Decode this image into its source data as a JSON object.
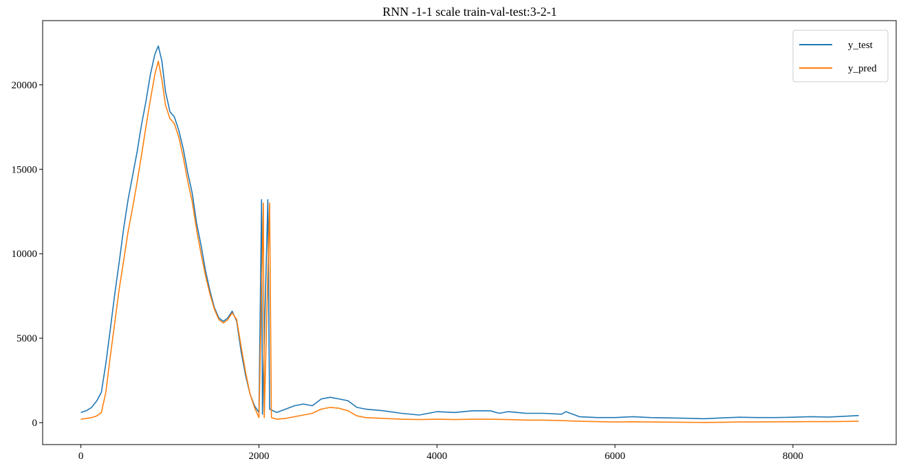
{
  "chart_data": {
    "type": "line",
    "title": "RNN -1-1 scale train-val-test:3-2-1",
    "xlabel": "",
    "ylabel": "",
    "xlim": [
      -430,
      9160
    ],
    "ylim": [
      -1300,
      23800
    ],
    "xticks": [
      0,
      2000,
      4000,
      6000,
      8000
    ],
    "yticks": [
      0,
      5000,
      10000,
      15000,
      20000
    ],
    "grid": false,
    "legend_position": "top-right",
    "series": [
      {
        "name": "y_test",
        "color": "#1f77b4",
        "points": [
          [
            0,
            600
          ],
          [
            60,
            700
          ],
          [
            120,
            900
          ],
          [
            180,
            1300
          ],
          [
            230,
            1800
          ],
          [
            280,
            3500
          ],
          [
            330,
            5500
          ],
          [
            380,
            7600
          ],
          [
            430,
            9500
          ],
          [
            480,
            11500
          ],
          [
            530,
            13200
          ],
          [
            580,
            14600
          ],
          [
            630,
            16000
          ],
          [
            680,
            17600
          ],
          [
            730,
            19000
          ],
          [
            780,
            20600
          ],
          [
            830,
            21800
          ],
          [
            870,
            22300
          ],
          [
            910,
            21400
          ],
          [
            950,
            19600
          ],
          [
            1000,
            18400
          ],
          [
            1050,
            18100
          ],
          [
            1100,
            17300
          ],
          [
            1150,
            16200
          ],
          [
            1200,
            14800
          ],
          [
            1250,
            13600
          ],
          [
            1300,
            11800
          ],
          [
            1350,
            10500
          ],
          [
            1400,
            9000
          ],
          [
            1450,
            7800
          ],
          [
            1500,
            6800
          ],
          [
            1550,
            6200
          ],
          [
            1600,
            6000
          ],
          [
            1650,
            6200
          ],
          [
            1700,
            6600
          ],
          [
            1750,
            6000
          ],
          [
            1800,
            4200
          ],
          [
            1850,
            2800
          ],
          [
            1900,
            1700
          ],
          [
            1950,
            1000
          ],
          [
            2000,
            600
          ],
          [
            2030,
            13200
          ],
          [
            2040,
            500
          ],
          [
            2100,
            13200
          ],
          [
            2120,
            800
          ],
          [
            2200,
            600
          ],
          [
            2300,
            800
          ],
          [
            2400,
            1000
          ],
          [
            2500,
            1100
          ],
          [
            2600,
            1000
          ],
          [
            2700,
            1400
          ],
          [
            2800,
            1500
          ],
          [
            2900,
            1400
          ],
          [
            3000,
            1300
          ],
          [
            3100,
            900
          ],
          [
            3200,
            800
          ],
          [
            3400,
            700
          ],
          [
            3600,
            550
          ],
          [
            3800,
            450
          ],
          [
            4000,
            650
          ],
          [
            4200,
            600
          ],
          [
            4400,
            700
          ],
          [
            4600,
            700
          ],
          [
            4700,
            550
          ],
          [
            4800,
            650
          ],
          [
            5000,
            550
          ],
          [
            5200,
            550
          ],
          [
            5400,
            500
          ],
          [
            5450,
            650
          ],
          [
            5600,
            350
          ],
          [
            5800,
            300
          ],
          [
            6000,
            300
          ],
          [
            6200,
            350
          ],
          [
            6400,
            300
          ],
          [
            6600,
            280
          ],
          [
            6800,
            260
          ],
          [
            7000,
            230
          ],
          [
            7200,
            280
          ],
          [
            7400,
            320
          ],
          [
            7600,
            300
          ],
          [
            7800,
            300
          ],
          [
            8000,
            320
          ],
          [
            8200,
            350
          ],
          [
            8400,
            330
          ],
          [
            8600,
            380
          ],
          [
            8740,
            420
          ]
        ]
      },
      {
        "name": "y_pred",
        "color": "#ff7f0e",
        "points": [
          [
            0,
            200
          ],
          [
            60,
            250
          ],
          [
            120,
            300
          ],
          [
            180,
            400
          ],
          [
            230,
            600
          ],
          [
            280,
            1800
          ],
          [
            330,
            3900
          ],
          [
            380,
            5900
          ],
          [
            430,
            7900
          ],
          [
            480,
            9600
          ],
          [
            530,
            11300
          ],
          [
            580,
            12700
          ],
          [
            630,
            14200
          ],
          [
            680,
            15800
          ],
          [
            730,
            17500
          ],
          [
            780,
            19100
          ],
          [
            830,
            20600
          ],
          [
            870,
            21400
          ],
          [
            910,
            20300
          ],
          [
            950,
            18800
          ],
          [
            1000,
            18000
          ],
          [
            1050,
            17700
          ],
          [
            1100,
            16900
          ],
          [
            1150,
            15700
          ],
          [
            1200,
            14300
          ],
          [
            1250,
            13100
          ],
          [
            1300,
            11400
          ],
          [
            1350,
            10000
          ],
          [
            1400,
            8700
          ],
          [
            1450,
            7600
          ],
          [
            1500,
            6700
          ],
          [
            1550,
            6100
          ],
          [
            1600,
            5900
          ],
          [
            1650,
            6100
          ],
          [
            1700,
            6500
          ],
          [
            1750,
            6100
          ],
          [
            1800,
            4500
          ],
          [
            1850,
            3000
          ],
          [
            1900,
            1700
          ],
          [
            1950,
            900
          ],
          [
            2000,
            300
          ],
          [
            2050,
            13000
          ],
          [
            2060,
            300
          ],
          [
            2120,
            13000
          ],
          [
            2140,
            300
          ],
          [
            2200,
            200
          ],
          [
            2300,
            250
          ],
          [
            2400,
            350
          ],
          [
            2500,
            450
          ],
          [
            2600,
            550
          ],
          [
            2700,
            800
          ],
          [
            2800,
            900
          ],
          [
            2900,
            850
          ],
          [
            3000,
            700
          ],
          [
            3100,
            400
          ],
          [
            3200,
            300
          ],
          [
            3400,
            250
          ],
          [
            3600,
            200
          ],
          [
            3800,
            180
          ],
          [
            4000,
            200
          ],
          [
            4200,
            180
          ],
          [
            4400,
            200
          ],
          [
            4600,
            200
          ],
          [
            4800,
            180
          ],
          [
            5000,
            150
          ],
          [
            5200,
            150
          ],
          [
            5400,
            120
          ],
          [
            5600,
            80
          ],
          [
            5800,
            60
          ],
          [
            6000,
            40
          ],
          [
            6200,
            50
          ],
          [
            6400,
            40
          ],
          [
            6600,
            30
          ],
          [
            6800,
            20
          ],
          [
            7000,
            10
          ],
          [
            7200,
            20
          ],
          [
            7400,
            40
          ],
          [
            7600,
            40
          ],
          [
            7800,
            50
          ],
          [
            8000,
            50
          ],
          [
            8200,
            60
          ],
          [
            8400,
            60
          ],
          [
            8600,
            70
          ],
          [
            8740,
            80
          ]
        ]
      }
    ]
  }
}
